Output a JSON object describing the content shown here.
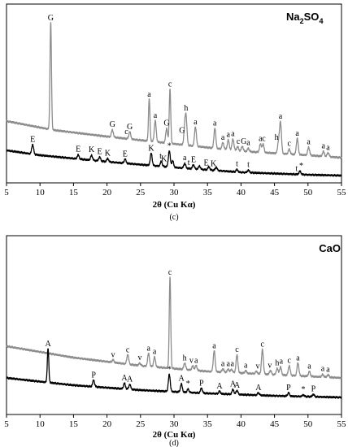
{
  "chart_data": [
    {
      "type": "line",
      "panel_label": "(c)",
      "compound": "Na2SO4",
      "compound_main": "Na",
      "compound_sub1": "2",
      "compound_mid": "SO",
      "compound_sub2": "4",
      "xlabel": "2θ (Cu Kα)",
      "xlim": [
        5,
        55
      ],
      "x_ticks": [
        "5",
        "10",
        "15",
        "20",
        "25",
        "30",
        "35",
        "40",
        "45",
        "50",
        "55"
      ],
      "grid": false,
      "colors": {
        "upper": "#8c8c8c",
        "lower": "#000000"
      },
      "series": [
        {
          "color": "#8c8c8c",
          "baseline": [
            [
              5,
              144
            ],
            [
              12,
              155
            ],
            [
              20,
              163
            ],
            [
              30,
              172
            ],
            [
              40,
              181
            ],
            [
              50,
              186
            ],
            [
              55,
              189
            ]
          ],
          "peaks": [
            [
              11.6,
              132
            ],
            [
              20.8,
              9
            ],
            [
              23.4,
              9
            ],
            [
              26.3,
              52
            ],
            [
              27.2,
              26
            ],
            [
              28.9,
              18
            ],
            [
              29.4,
              67
            ],
            [
              31.6,
              17
            ],
            [
              31.8,
              32
            ],
            [
              33.2,
              24
            ],
            [
              36.1,
              25
            ],
            [
              37.3,
              8
            ],
            [
              38.1,
              12
            ],
            [
              38.8,
              14
            ],
            [
              39.5,
              5
            ],
            [
              40.2,
              6
            ],
            [
              41.1,
              4
            ],
            [
              42.9,
              10
            ],
            [
              43.3,
              10
            ],
            [
              45.6,
              14
            ],
            [
              45.9,
              38
            ],
            [
              47.2,
              6
            ],
            [
              48.4,
              20
            ],
            [
              50.1,
              10
            ],
            [
              52.3,
              6
            ],
            [
              53.0,
              5
            ]
          ],
          "labels": [
            {
              "x": 11.6,
              "text": "G"
            },
            {
              "x": 20.8,
              "text": "G"
            },
            {
              "x": 22.9,
              "text": "c"
            },
            {
              "x": 23.4,
              "text": "G"
            },
            {
              "x": 26.3,
              "text": "a"
            },
            {
              "x": 27.2,
              "text": "a"
            },
            {
              "x": 28.9,
              "text": "G"
            },
            {
              "x": 29.4,
              "text": "c"
            },
            {
              "x": 31.2,
              "text": "G"
            },
            {
              "x": 31.8,
              "text": "h"
            },
            {
              "x": 33.2,
              "text": "a"
            },
            {
              "x": 36.1,
              "text": "a"
            },
            {
              "x": 37.3,
              "text": "a"
            },
            {
              "x": 38.1,
              "text": "a"
            },
            {
              "x": 38.8,
              "text": "a"
            },
            {
              "x": 39.6,
              "text": "c"
            },
            {
              "x": 40.4,
              "text": "G"
            },
            {
              "x": 41.1,
              "text": "a"
            },
            {
              "x": 42.9,
              "text": "a"
            },
            {
              "x": 43.4,
              "text": "c"
            },
            {
              "x": 45.3,
              "text": "h"
            },
            {
              "x": 45.9,
              "text": "a"
            },
            {
              "x": 47.2,
              "text": "c"
            },
            {
              "x": 48.4,
              "text": "a"
            },
            {
              "x": 50.1,
              "text": "a"
            },
            {
              "x": 52.3,
              "text": "a"
            },
            {
              "x": 53.0,
              "text": "a"
            }
          ]
        },
        {
          "color": "#000000",
          "baseline": [
            [
              5,
              180
            ],
            [
              10,
              186
            ],
            [
              20,
              194
            ],
            [
              30,
              201
            ],
            [
              40,
              207
            ],
            [
              50,
              210
            ],
            [
              55,
              211
            ]
          ],
          "peaks": [
            [
              8.9,
              12
            ],
            [
              15.7,
              5
            ],
            [
              17.7,
              6
            ],
            [
              18.9,
              5
            ],
            [
              20.1,
              4
            ],
            [
              22.7,
              5
            ],
            [
              26.6,
              15
            ],
            [
              28.1,
              6
            ],
            [
              29.3,
              20
            ],
            [
              29.8,
              8
            ],
            [
              31.6,
              6
            ],
            [
              32.9,
              5
            ],
            [
              33.8,
              4
            ],
            [
              35.2,
              4
            ],
            [
              36.3,
              4
            ],
            [
              39.4,
              3
            ],
            [
              41.1,
              3
            ],
            [
              48.8,
              4
            ]
          ],
          "labels": [
            {
              "x": 8.9,
              "text": "E"
            },
            {
              "x": 15.7,
              "text": "E"
            },
            {
              "x": 17.7,
              "text": "K"
            },
            {
              "x": 18.9,
              "text": "E"
            },
            {
              "x": 20.1,
              "text": "K"
            },
            {
              "x": 22.7,
              "text": "E"
            },
            {
              "x": 26.6,
              "text": "K"
            },
            {
              "x": 28.0,
              "text": "t"
            },
            {
              "x": 28.5,
              "text": "K"
            },
            {
              "x": 29.3,
              "text": "*"
            },
            {
              "x": 31.6,
              "text": "a"
            },
            {
              "x": 32.2,
              "text": "t"
            },
            {
              "x": 32.9,
              "text": "E"
            },
            {
              "x": 34.8,
              "text": "E"
            },
            {
              "x": 35.9,
              "text": "K"
            },
            {
              "x": 39.4,
              "text": "t"
            },
            {
              "x": 41.1,
              "text": "t"
            },
            {
              "x": 48.3,
              "text": "t"
            },
            {
              "x": 49.0,
              "text": "*"
            }
          ]
        }
      ]
    },
    {
      "type": "line",
      "panel_label": "(d)",
      "compound": "CaO",
      "xlabel": "2θ (Cu Kα)",
      "xlim": [
        5,
        55
      ],
      "x_ticks": [
        "5",
        "10",
        "15",
        "20",
        "25",
        "30",
        "35",
        "40",
        "45",
        "50",
        "55"
      ],
      "grid": false,
      "colors": {
        "upper": "#8c8c8c",
        "lower": "#000000"
      },
      "series": [
        {
          "color": "#8c8c8c",
          "baseline": [
            [
              5,
              136
            ],
            [
              15,
              150
            ],
            [
              25,
              160
            ],
            [
              35,
              167
            ],
            [
              45,
              171
            ],
            [
              55,
              175
            ]
          ],
          "peaks": [
            [
              20.9,
              3
            ],
            [
              23.1,
              12
            ],
            [
              24.9,
              3
            ],
            [
              26.2,
              16
            ],
            [
              27.1,
              12
            ],
            [
              29.4,
              112
            ],
            [
              31.6,
              8
            ],
            [
              32.8,
              5
            ],
            [
              33.3,
              6
            ],
            [
              36.0,
              26
            ],
            [
              37.3,
              4
            ],
            [
              38.1,
              4
            ],
            [
              38.6,
              4
            ],
            [
              39.4,
              22
            ],
            [
              40.7,
              3
            ],
            [
              42.3,
              3
            ],
            [
              43.2,
              30
            ],
            [
              44.4,
              5
            ],
            [
              45.4,
              8
            ],
            [
              45.9,
              10
            ],
            [
              47.2,
              12
            ],
            [
              48.5,
              16
            ],
            [
              50.2,
              6
            ],
            [
              52.2,
              3
            ],
            [
              53.0,
              3
            ]
          ],
          "labels": [
            {
              "x": 20.9,
              "text": "v"
            },
            {
              "x": 23.1,
              "text": "c"
            },
            {
              "x": 24.9,
              "text": "v"
            },
            {
              "x": 26.2,
              "text": "a"
            },
            {
              "x": 27.1,
              "text": "a"
            },
            {
              "x": 29.4,
              "text": "c"
            },
            {
              "x": 31.6,
              "text": "h"
            },
            {
              "x": 32.6,
              "text": "v"
            },
            {
              "x": 33.3,
              "text": "a"
            },
            {
              "x": 36.0,
              "text": "a"
            },
            {
              "x": 37.3,
              "text": "a"
            },
            {
              "x": 38.1,
              "text": "a"
            },
            {
              "x": 38.7,
              "text": "a"
            },
            {
              "x": 39.4,
              "text": "c"
            },
            {
              "x": 40.7,
              "text": "a"
            },
            {
              "x": 42.5,
              "text": "v"
            },
            {
              "x": 43.2,
              "text": "c"
            },
            {
              "x": 44.3,
              "text": "v"
            },
            {
              "x": 45.4,
              "text": "h"
            },
            {
              "x": 46.0,
              "text": "a"
            },
            {
              "x": 47.2,
              "text": "c"
            },
            {
              "x": 48.5,
              "text": "a"
            },
            {
              "x": 50.2,
              "text": "a"
            },
            {
              "x": 52.2,
              "text": "a"
            },
            {
              "x": 53.0,
              "text": "a"
            }
          ]
        },
        {
          "color": "#000000",
          "baseline": [
            [
              5,
              175
            ],
            [
              15,
              184
            ],
            [
              25,
              190
            ],
            [
              35,
              194
            ],
            [
              45,
              197
            ],
            [
              55,
              199
            ]
          ],
          "peaks": [
            [
              11.2,
              42
            ],
            [
              18.0,
              8
            ],
            [
              22.6,
              7
            ],
            [
              23.4,
              6
            ],
            [
              29.3,
              21
            ],
            [
              31.1,
              10
            ],
            [
              32.1,
              4
            ],
            [
              34.1,
              6
            ],
            [
              36.8,
              3
            ],
            [
              38.8,
              6
            ],
            [
              39.4,
              5
            ],
            [
              42.6,
              3
            ],
            [
              47.1,
              4
            ],
            [
              49.3,
              2
            ],
            [
              50.8,
              3
            ]
          ],
          "labels": [
            {
              "x": 11.2,
              "text": "A"
            },
            {
              "x": 18.0,
              "text": "P"
            },
            {
              "x": 22.6,
              "text": "A"
            },
            {
              "x": 23.4,
              "text": "A"
            },
            {
              "x": 29.3,
              "text": "*"
            },
            {
              "x": 31.1,
              "text": "A"
            },
            {
              "x": 32.1,
              "text": "*"
            },
            {
              "x": 34.1,
              "text": "P"
            },
            {
              "x": 36.8,
              "text": "A"
            },
            {
              "x": 38.8,
              "text": "A"
            },
            {
              "x": 39.4,
              "text": "A"
            },
            {
              "x": 42.6,
              "text": "A"
            },
            {
              "x": 47.1,
              "text": "P"
            },
            {
              "x": 49.3,
              "text": "*"
            },
            {
              "x": 50.8,
              "text": "P"
            }
          ]
        }
      ]
    }
  ]
}
